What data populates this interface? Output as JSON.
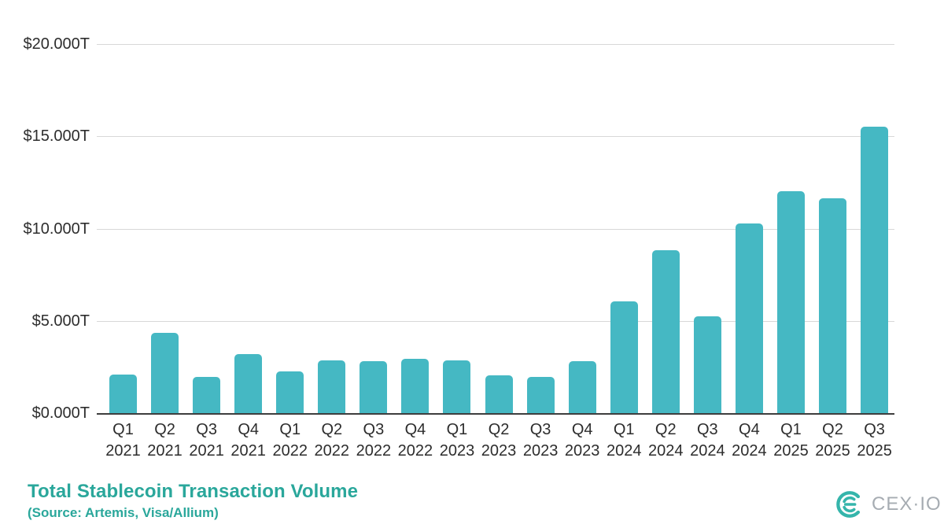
{
  "chart_data": {
    "type": "bar",
    "title": "Total Stablecoin Transaction Volume",
    "source": "(Source: Artemis, Visa/Allium)",
    "categories": [
      "Q1 2021",
      "Q2 2021",
      "Q3 2021",
      "Q4 2021",
      "Q1 2022",
      "Q2 2022",
      "Q3 2022",
      "Q4 2022",
      "Q1 2023",
      "Q2 2023",
      "Q3 2023",
      "Q4 2023",
      "Q1 2024",
      "Q2 2024",
      "Q3 2024",
      "Q4 2024",
      "Q1 2025",
      "Q2 2025",
      "Q3 2025"
    ],
    "values": [
      2.15,
      4.4,
      2.0,
      3.25,
      2.3,
      2.9,
      2.85,
      3.0,
      2.9,
      2.1,
      2.0,
      2.85,
      6.1,
      8.85,
      5.3,
      10.3,
      12.05,
      11.7,
      15.55
    ],
    "value_unit": "USD trillions",
    "ylim": [
      0,
      20
    ],
    "yticks": [
      0,
      5,
      10,
      15,
      20
    ],
    "ytick_labels": [
      "$0.000T",
      "$5.000T",
      "$10.000T",
      "$15.000T",
      "$20.000T"
    ],
    "grid": true,
    "legend": "none",
    "bar_color": "#45b8c3"
  },
  "branding": {
    "logo_text": "CEX·IO",
    "logo_mark_color": "#35b5ab",
    "logo_text_color": "#a6acb2"
  },
  "colors": {
    "title_teal": "#2aa79b",
    "axis_text": "#2d2d2d",
    "gridline": "#d8d8d8",
    "axis_line": "#3e3e3e",
    "background": "#ffffff"
  }
}
